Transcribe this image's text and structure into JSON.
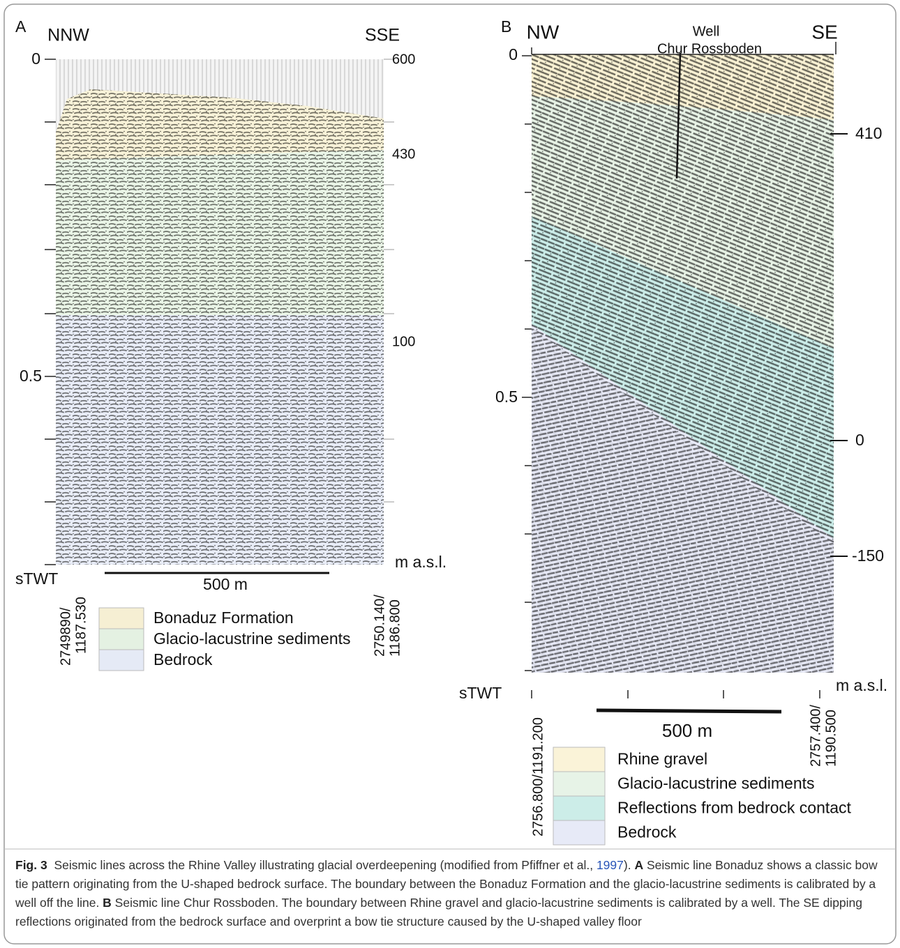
{
  "panel_a": {
    "letter": "A",
    "left_direction": "NNW",
    "right_direction": "SSE",
    "twt_ticks": [
      "0",
      "0.5"
    ],
    "elevation_labels": [
      "600",
      "430",
      "100"
    ],
    "elevation_unit": "m a.s.l.",
    "twt_label": "sTWT",
    "scale_bar": "500 m",
    "coord_left": [
      "2749890/",
      "1187.530"
    ],
    "coord_right": [
      "2750.140/",
      "1186.800"
    ],
    "legend": [
      {
        "label": "Bonaduz Formation",
        "color": "#f6efd3"
      },
      {
        "label": "Glacio-lacustrine sediments",
        "color": "#e4f1e2"
      },
      {
        "label": "Bedrock",
        "color": "#e5eaf6"
      }
    ]
  },
  "panel_b": {
    "letter": "B",
    "left_direction": "NW",
    "right_direction": "SE",
    "well_label": [
      "Well",
      "Chur Rossboden"
    ],
    "twt_ticks": [
      "0",
      "0.5"
    ],
    "elevation_labels": [
      "410",
      "0",
      "-150"
    ],
    "elevation_unit": "m a.s.l.",
    "twt_label": "sTWT",
    "scale_bar": "500 m",
    "coord_left": [
      "2756.800/1191.200"
    ],
    "coord_right": [
      "2757.400/",
      "1190.500"
    ],
    "legend": [
      {
        "label": "Rhine gravel",
        "color": "#faf3d8"
      },
      {
        "label": "Glacio-lacustrine sediments",
        "color": "#e7f3e7"
      },
      {
        "label": "Reflections from bedrock contact",
        "color": "#ccede8"
      },
      {
        "label": "Bedrock",
        "color": "#e7eaf7"
      }
    ]
  },
  "caption": {
    "label": "Fig. 3",
    "text_1": "Seismic lines across the Rhine Valley illustrating glacial overdeepening (modified from Pfiffner et al., ",
    "ref": "1997",
    "text_2": "). ",
    "bold_a": "A",
    "text_3": " Seismic line Bonaduz shows a classic bow tie pattern originating from the U-shaped bedrock surface. The boundary between the Bonaduz Formation and the glacio-lacustrine sediments is calibrated by a well off the line. ",
    "bold_b": "B",
    "text_4": " Seismic line Chur Rossboden. The boundary between Rhine gravel and glacio-lacustrine sediments is calibrated by a well. The SE dipping reflections originated from the bedrock surface and overprint a bow tie structure caused by the U-shaped valley floor"
  }
}
